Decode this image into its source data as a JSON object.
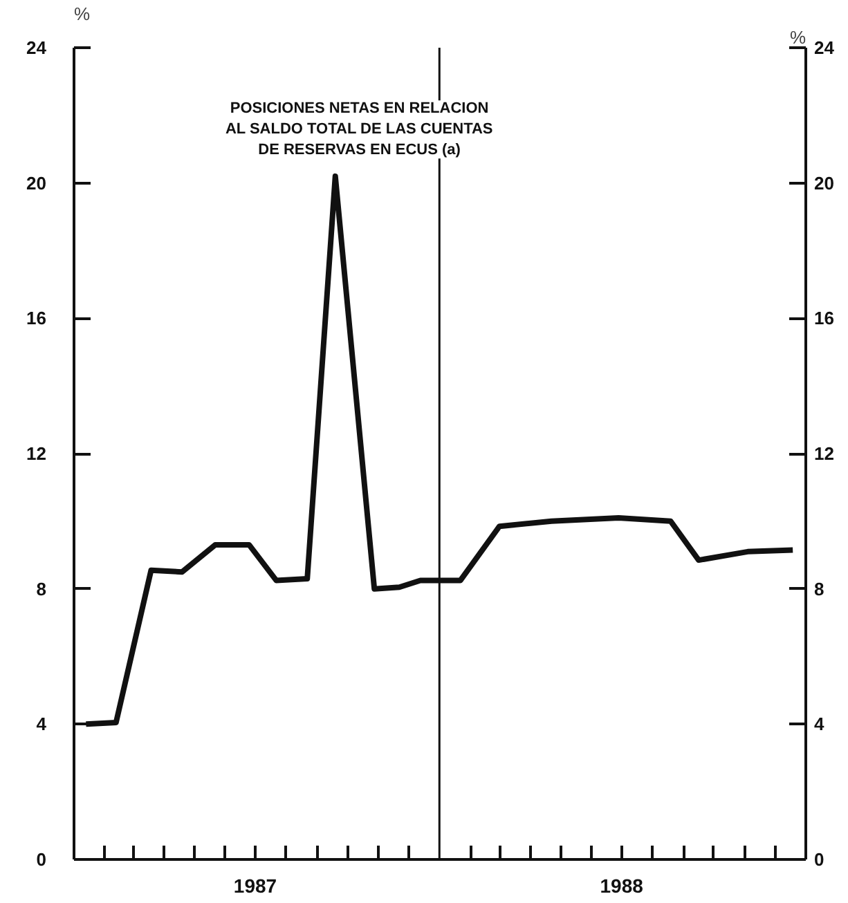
{
  "chart_data": {
    "type": "line",
    "annotations": [
      "POSICIONES NETAS EN RELACION\nAL SALDO TOTAL DE LAS CUENTAS\nDE RESERVAS EN ECUS (a)"
    ],
    "ylabel": "%",
    "y2label": "%",
    "x": [
      "1987-01-13",
      "1987-02-12",
      "1987-03-19",
      "1987-04-19",
      "1987-05-22",
      "1987-06-25",
      "1987-07-22",
      "1987-08-22",
      "1987-09-19",
      "1987-10-28",
      "1987-11-22",
      "1987-12-13",
      "1988-01-01",
      "1988-01-22",
      "1988-03-01",
      "1988-04-22",
      "1988-06-28",
      "1988-08-19",
      "1988-09-16",
      "1988-11-04",
      "1988-12-19"
    ],
    "series": [
      {
        "color": "#111111",
        "values": [
          4.0,
          4.05,
          8.55,
          8.5,
          9.3,
          9.3,
          8.25,
          8.3,
          20.2,
          8.0,
          8.05,
          8.25,
          8.25,
          8.25,
          9.85,
          10.0,
          10.1,
          10.0,
          8.85,
          9.1,
          9.15
        ]
      }
    ],
    "xlim": [
      "1987-01-01",
      "1989-01-01"
    ],
    "xticks": [
      {
        "value": "1987-02-01",
        "label": null
      },
      {
        "value": "1987-03-01",
        "label": null
      },
      {
        "value": "1987-04-01",
        "label": null
      },
      {
        "value": "1987-05-01",
        "label": null
      },
      {
        "value": "1987-06-01",
        "label": null
      },
      {
        "value": "1987-07-01",
        "label": "1987"
      },
      {
        "value": "1987-08-01",
        "label": null
      },
      {
        "value": "1987-09-01",
        "label": null
      },
      {
        "value": "1987-10-01",
        "label": null
      },
      {
        "value": "1987-11-01",
        "label": null
      },
      {
        "value": "1987-12-01",
        "label": null
      },
      {
        "value": "1988-02-01",
        "label": null
      },
      {
        "value": "1988-03-01",
        "label": null
      },
      {
        "value": "1988-04-01",
        "label": null
      },
      {
        "value": "1988-05-01",
        "label": null
      },
      {
        "value": "1988-06-01",
        "label": null
      },
      {
        "value": "1988-07-01",
        "label": "1988"
      },
      {
        "value": "1988-08-01",
        "label": null
      },
      {
        "value": "1988-09-01",
        "label": null
      },
      {
        "value": "1988-10-01",
        "label": null
      },
      {
        "value": "1988-11-01",
        "label": null
      },
      {
        "value": "1988-12-01",
        "label": null
      }
    ],
    "ylim": [
      0,
      24
    ],
    "yticks": [
      0,
      4,
      8,
      12,
      16,
      20,
      24
    ],
    "y2lim": [
      0,
      24
    ],
    "y2ticks": [
      0,
      4,
      8,
      12,
      16,
      20,
      24
    ],
    "ref_lines": [
      {
        "axis": "x",
        "value": "1988-01-01",
        "label": null,
        "color": "#111111"
      }
    ],
    "marker": "none",
    "line_style": "solid"
  }
}
